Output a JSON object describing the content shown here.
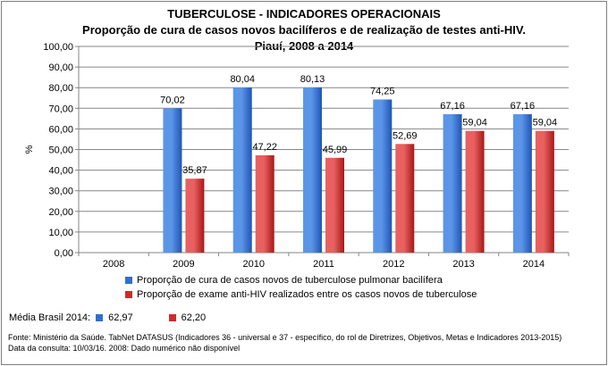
{
  "title_lines": [
    "TUBERCULOSE - INDICADORES OPERACIONAIS",
    "Proporção de cura de casos novos bacilíferos e de realização de testes anti-HIV.",
    "Piauí, 2008 a 2014"
  ],
  "chart_data": {
    "type": "bar",
    "ylabel": "%",
    "ylim": [
      0,
      100
    ],
    "yticks": [
      "0,00",
      "10,00",
      "20,00",
      "30,00",
      "40,00",
      "50,00",
      "60,00",
      "70,00",
      "80,00",
      "90,00",
      "100,00"
    ],
    "categories": [
      "2008",
      "2009",
      "2010",
      "2011",
      "2012",
      "2013",
      "2014"
    ],
    "series": [
      {
        "name": "Proporção de cura de casos novos de tuberculose pulmonar bacilífera",
        "color": "#2f6fd0",
        "values": [
          null,
          70.02,
          80.04,
          80.13,
          74.25,
          67.16,
          67.16
        ],
        "labels": [
          "",
          "70,02",
          "80,04",
          "80,13",
          "74,25",
          "67,16",
          "67,16"
        ]
      },
      {
        "name": "Proporção de exame anti-HIV realizados entre os casos novos de tuberculose",
        "color": "#d12a2a",
        "values": [
          null,
          35.87,
          47.22,
          45.99,
          52.69,
          59.04,
          59.04
        ],
        "labels": [
          "",
          "35,87",
          "47,22",
          "45,99",
          "52,69",
          "59,04",
          "59,04"
        ]
      }
    ]
  },
  "media_brasil": {
    "label": "Média Brasil 2014:",
    "values": [
      {
        "value": "62,97",
        "color": "#2f6fd0"
      },
      {
        "value": "62,20",
        "color": "#d12a2a"
      }
    ]
  },
  "source_lines": [
    "Fonte: Ministério da Saúde. TabNet DATASUS (Indicadores 36 - universal e 37 - específico, do rol de Diretrizes, Objetivos, Metas e Indicadores 2013-2015)",
    "Data da consulta: 10/03/16. 2008: Dado numérico não disponível"
  ]
}
